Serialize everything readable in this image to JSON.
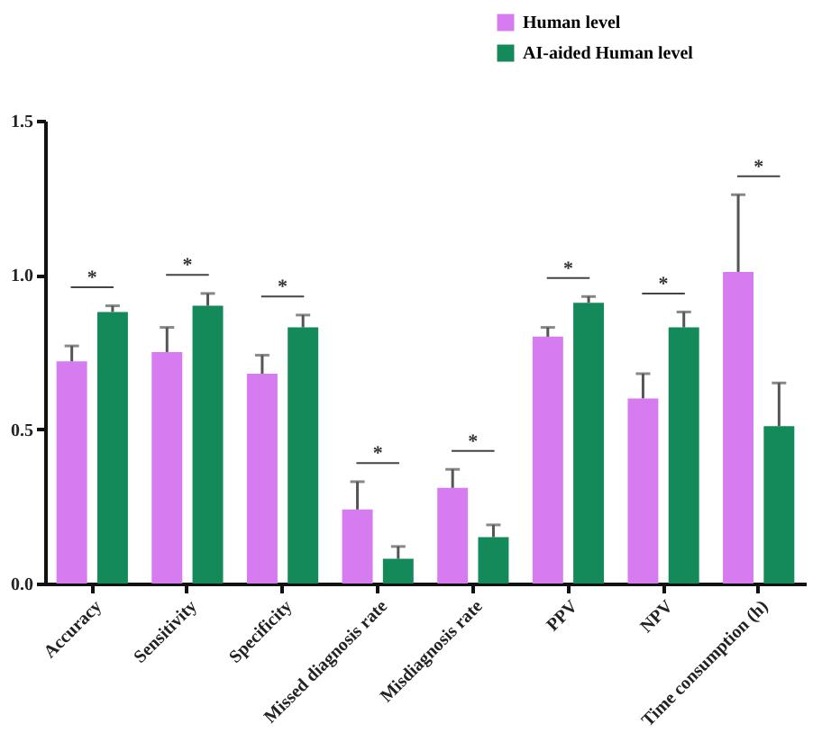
{
  "chart_data": {
    "type": "bar",
    "categories": [
      "Accuracy",
      "Sensitivity",
      "Specificity",
      "Missed diagnosis rate",
      "Misdiagnosis rate",
      "PPV",
      "NPV",
      "Time consumption (h)"
    ],
    "series": [
      {
        "name": "Human level",
        "color": "#d77cf0",
        "values": [
          0.72,
          0.75,
          0.68,
          0.24,
          0.31,
          0.8,
          0.6,
          1.01
        ],
        "errors": [
          [
            0.72,
            0.77
          ],
          [
            0.75,
            0.83
          ],
          [
            0.68,
            0.74
          ],
          [
            0.24,
            0.33
          ],
          [
            0.31,
            0.37
          ],
          [
            0.8,
            0.83
          ],
          [
            0.6,
            0.68
          ],
          [
            1.01,
            1.26
          ]
        ]
      },
      {
        "name": "AI-aided Human level",
        "color": "#14895a",
        "values": [
          0.88,
          0.9,
          0.83,
          0.08,
          0.15,
          0.91,
          0.83,
          0.51
        ],
        "errors": [
          [
            0.88,
            0.9
          ],
          [
            0.9,
            0.94
          ],
          [
            0.83,
            0.87
          ],
          [
            0.08,
            0.12
          ],
          [
            0.15,
            0.19
          ],
          [
            0.91,
            0.93
          ],
          [
            0.83,
            0.88
          ],
          [
            0.51,
            0.65
          ]
        ]
      }
    ],
    "annotations": [
      "*",
      "*",
      "*",
      "*",
      "*",
      "*",
      "*",
      "*"
    ],
    "ylim": [
      0,
      1.5
    ],
    "yticks": [
      {
        "value": 0,
        "label": "0.0"
      },
      {
        "value": 0.5,
        "label": "0.5"
      },
      {
        "value": 1,
        "label": "1.0"
      },
      {
        "value": 1.5,
        "label": "1.5"
      }
    ],
    "legend": "top right",
    "grid": false
  }
}
